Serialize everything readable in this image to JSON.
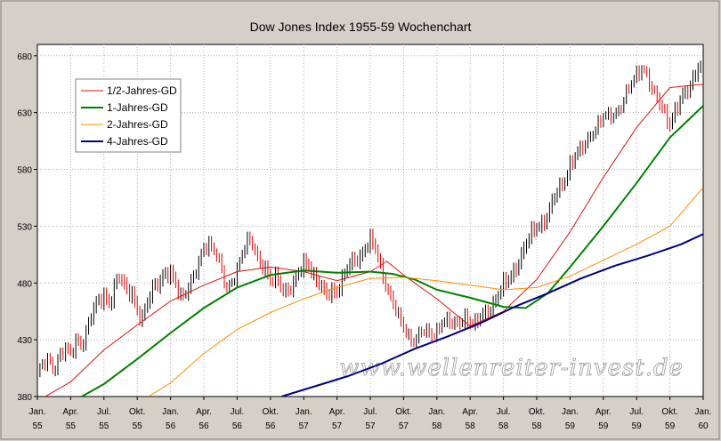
{
  "chart_data": {
    "type": "line",
    "title": "Dow Jones Index 1955-59 Wochenchart",
    "watermark": "www.wellenreiter-invest.de",
    "ylim": [
      380,
      690
    ],
    "yticks": [
      380,
      430,
      480,
      530,
      580,
      630,
      680
    ],
    "xlim": [
      0,
      60
    ],
    "xticks": [
      {
        "x": 0,
        "month": "Jan.",
        "year": "55"
      },
      {
        "x": 3,
        "month": "Apr.",
        "year": "55"
      },
      {
        "x": 6,
        "month": "Jul.",
        "year": "55"
      },
      {
        "x": 9,
        "month": "Okt.",
        "year": "55"
      },
      {
        "x": 12,
        "month": "Jan.",
        "year": "56"
      },
      {
        "x": 15,
        "month": "Apr.",
        "year": "56"
      },
      {
        "x": 18,
        "month": "Jul.",
        "year": "56"
      },
      {
        "x": 21,
        "month": "Okt.",
        "year": "56"
      },
      {
        "x": 24,
        "month": "Jan.",
        "year": "57"
      },
      {
        "x": 27,
        "month": "Apr.",
        "year": "57"
      },
      {
        "x": 30,
        "month": "Jul.",
        "year": "57"
      },
      {
        "x": 33,
        "month": "Okt.",
        "year": "57"
      },
      {
        "x": 36,
        "month": "Jan.",
        "year": "58"
      },
      {
        "x": 39,
        "month": "Apr.",
        "year": "58"
      },
      {
        "x": 42,
        "month": "Jul.",
        "year": "58"
      },
      {
        "x": 45,
        "month": "Okt.",
        "year": "58"
      },
      {
        "x": 48,
        "month": "Jan.",
        "year": "59"
      },
      {
        "x": 51,
        "month": "Apr.",
        "year": "59"
      },
      {
        "x": 54,
        "month": "Jul.",
        "year": "59"
      },
      {
        "x": 57,
        "month": "Okt.",
        "year": "59"
      },
      {
        "x": 60,
        "month": "Jan.",
        "year": "60"
      }
    ],
    "grid": true,
    "legend_position": "top-left",
    "price": {
      "color_up": "#000000",
      "color_down": "#e00000",
      "points": [
        [
          0,
          400
        ],
        [
          0.5,
          408
        ],
        [
          1,
          412
        ],
        [
          1.5,
          405
        ],
        [
          2,
          418
        ],
        [
          2.5,
          422
        ],
        [
          3,
          415
        ],
        [
          3.5,
          430
        ],
        [
          4,
          427
        ],
        [
          4.5,
          440
        ],
        [
          5,
          455
        ],
        [
          5.5,
          462
        ],
        [
          6,
          470
        ],
        [
          6.5,
          462
        ],
        [
          7,
          478
        ],
        [
          7.5,
          484
        ],
        [
          8,
          472
        ],
        [
          8.5,
          474
        ],
        [
          9,
          455
        ],
        [
          9.5,
          446
        ],
        [
          10,
          464
        ],
        [
          10.5,
          478
        ],
        [
          11,
          483
        ],
        [
          11.5,
          488
        ],
        [
          12,
          486
        ],
        [
          12.5,
          477
        ],
        [
          13,
          468
        ],
        [
          13.5,
          476
        ],
        [
          14,
          483
        ],
        [
          14.5,
          494
        ],
        [
          15,
          512
        ],
        [
          15.5,
          517
        ],
        [
          16,
          509
        ],
        [
          16.5,
          495
        ],
        [
          17,
          473
        ],
        [
          17.5,
          482
        ],
        [
          18,
          494
        ],
        [
          18.5,
          508
        ],
        [
          19,
          517
        ],
        [
          19.5,
          512
        ],
        [
          20,
          500
        ],
        [
          20.5,
          495
        ],
        [
          21,
          480
        ],
        [
          21.5,
          484
        ],
        [
          22,
          476
        ],
        [
          22.5,
          474
        ],
        [
          23,
          478
        ],
        [
          23.5,
          486
        ],
        [
          24,
          496
        ],
        [
          24.5,
          497
        ],
        [
          25,
          485
        ],
        [
          25.5,
          477
        ],
        [
          26,
          467
        ],
        [
          26.5,
          472
        ],
        [
          27,
          474
        ],
        [
          27.5,
          484
        ],
        [
          28,
          493
        ],
        [
          28.5,
          498
        ],
        [
          29,
          502
        ],
        [
          29.5,
          512
        ],
        [
          30,
          518
        ],
        [
          30.5,
          508
        ],
        [
          31,
          490
        ],
        [
          31.5,
          477
        ],
        [
          32,
          466
        ],
        [
          32.5,
          450
        ],
        [
          33,
          440
        ],
        [
          33.5,
          432
        ],
        [
          34,
          432
        ],
        [
          34.5,
          438
        ],
        [
          35,
          437
        ],
        [
          35.5,
          433
        ],
        [
          36,
          439
        ],
        [
          36.5,
          449
        ],
        [
          37,
          446
        ],
        [
          37.5,
          442
        ],
        [
          38,
          445
        ],
        [
          38.5,
          452
        ],
        [
          39,
          446
        ],
        [
          39.5,
          442
        ],
        [
          40,
          450
        ],
        [
          40.5,
          455
        ],
        [
          41,
          461
        ],
        [
          41.5,
          468
        ],
        [
          42,
          477
        ],
        [
          42.5,
          483
        ],
        [
          43,
          492
        ],
        [
          43.5,
          502
        ],
        [
          44,
          512
        ],
        [
          44.5,
          522
        ],
        [
          45,
          530
        ],
        [
          45.5,
          533
        ],
        [
          46,
          540
        ],
        [
          46.5,
          552
        ],
        [
          47,
          562
        ],
        [
          47.5,
          571
        ],
        [
          48,
          585
        ],
        [
          48.5,
          592
        ],
        [
          49,
          596
        ],
        [
          49.5,
          605
        ],
        [
          50,
          614
        ],
        [
          50.5,
          620
        ],
        [
          51,
          626
        ],
        [
          51.5,
          626
        ],
        [
          52,
          630
        ],
        [
          52.5,
          636
        ],
        [
          53,
          646
        ],
        [
          53.5,
          654
        ],
        [
          54,
          663
        ],
        [
          54.5,
          672
        ],
        [
          55,
          663
        ],
        [
          55.5,
          646
        ],
        [
          56,
          639
        ],
        [
          56.5,
          630
        ],
        [
          57,
          622
        ],
        [
          57.5,
          632
        ],
        [
          58,
          640
        ],
        [
          58.5,
          647
        ],
        [
          59,
          658
        ],
        [
          59.5,
          672
        ],
        [
          60,
          670
        ]
      ]
    },
    "series": [
      {
        "name": "1/2-Jahres-GD",
        "color": "#e01010",
        "width": 1,
        "points": [
          [
            0,
            376
          ],
          [
            3,
            393
          ],
          [
            6,
            421
          ],
          [
            9,
            443
          ],
          [
            12,
            464
          ],
          [
            15,
            478
          ],
          [
            18,
            490
          ],
          [
            21,
            494
          ],
          [
            24,
            490
          ],
          [
            27,
            482
          ],
          [
            30,
            490
          ],
          [
            31.5,
            499
          ],
          [
            33,
            487
          ],
          [
            36,
            466
          ],
          [
            39,
            442
          ],
          [
            42,
            455
          ],
          [
            45,
            483
          ],
          [
            48,
            525
          ],
          [
            51,
            573
          ],
          [
            54,
            617
          ],
          [
            57,
            652
          ],
          [
            60,
            655
          ]
        ]
      },
      {
        "name": "1-Jahres-GD",
        "color": "#008000",
        "width": 2,
        "points": [
          [
            4,
            380
          ],
          [
            6,
            391
          ],
          [
            9,
            413
          ],
          [
            12,
            436
          ],
          [
            15,
            458
          ],
          [
            18,
            476
          ],
          [
            21,
            487
          ],
          [
            24,
            491
          ],
          [
            27,
            489
          ],
          [
            30,
            490
          ],
          [
            32,
            488
          ],
          [
            34,
            483
          ],
          [
            36,
            474
          ],
          [
            39,
            467
          ],
          [
            42,
            459
          ],
          [
            44,
            458
          ],
          [
            46,
            471
          ],
          [
            48,
            494
          ],
          [
            51,
            530
          ],
          [
            54,
            568
          ],
          [
            57,
            608
          ],
          [
            60,
            636
          ]
        ]
      },
      {
        "name": "2-Jahres-GD",
        "color": "#ff8c00",
        "width": 1,
        "points": [
          [
            10,
            380
          ],
          [
            12,
            392
          ],
          [
            15,
            418
          ],
          [
            18,
            439
          ],
          [
            21,
            454
          ],
          [
            24,
            466
          ],
          [
            27,
            476
          ],
          [
            30,
            484
          ],
          [
            33,
            485
          ],
          [
            36,
            482
          ],
          [
            39,
            478
          ],
          [
            42,
            474
          ],
          [
            45,
            476
          ],
          [
            48,
            486
          ],
          [
            51,
            500
          ],
          [
            54,
            514
          ],
          [
            57,
            530
          ],
          [
            60,
            564
          ]
        ]
      },
      {
        "name": "4-Jahres-GD",
        "color": "#000080",
        "width": 2,
        "points": [
          [
            22,
            380
          ],
          [
            25,
            389
          ],
          [
            28,
            398
          ],
          [
            31,
            409
          ],
          [
            34,
            422
          ],
          [
            37,
            433
          ],
          [
            40,
            445
          ],
          [
            43,
            459
          ],
          [
            46,
            471
          ],
          [
            49,
            484
          ],
          [
            52,
            495
          ],
          [
            55,
            504
          ],
          [
            58,
            514
          ],
          [
            60,
            523
          ]
        ]
      }
    ]
  }
}
